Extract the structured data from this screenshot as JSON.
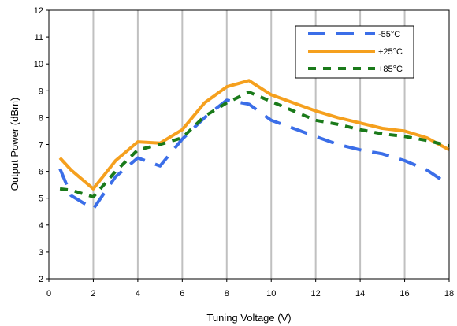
{
  "chart_data": {
    "type": "line",
    "xlabel": "Tuning Voltage (V)",
    "ylabel": "Output Power (dBm)",
    "xlim": [
      0,
      18
    ],
    "ylim": [
      2,
      12
    ],
    "xticks": [
      0,
      2,
      4,
      6,
      8,
      10,
      12,
      14,
      16,
      18
    ],
    "yticks": [
      2,
      3,
      4,
      5,
      6,
      7,
      8,
      9,
      10,
      11,
      12
    ],
    "grid": "vertical",
    "legend_position": "top-right",
    "series": [
      {
        "name": "-55°C",
        "color": "#3b6ee8",
        "style": "long-dash",
        "x": [
          0.5,
          1,
          2,
          3,
          4,
          5,
          6,
          7,
          8,
          9,
          10,
          11,
          12,
          13,
          14,
          15,
          16,
          17,
          18
        ],
        "y": [
          6.1,
          5.1,
          4.6,
          5.8,
          6.5,
          6.2,
          7.2,
          8.0,
          8.65,
          8.5,
          7.9,
          7.6,
          7.3,
          7.0,
          6.8,
          6.65,
          6.4,
          6.05,
          5.5
        ]
      },
      {
        "name": "+25°C",
        "color": "#f5a01e",
        "style": "solid",
        "x": [
          0.5,
          1,
          2,
          3,
          4,
          5,
          6,
          7,
          8,
          9,
          10,
          11,
          12,
          13,
          14,
          15,
          16,
          17,
          18
        ],
        "y": [
          6.5,
          6.05,
          5.35,
          6.4,
          7.1,
          7.05,
          7.55,
          8.55,
          9.15,
          9.38,
          8.85,
          8.55,
          8.25,
          8.0,
          7.8,
          7.6,
          7.5,
          7.25,
          6.8
        ]
      },
      {
        "name": "+85°C",
        "color": "#1a7a1a",
        "style": "dash",
        "x": [
          0.5,
          1,
          2,
          3,
          4,
          5,
          6,
          7,
          8,
          9,
          10,
          11,
          12,
          13,
          14,
          15,
          16,
          17,
          18
        ],
        "y": [
          5.35,
          5.3,
          5.05,
          6.0,
          6.8,
          7.0,
          7.25,
          8.05,
          8.55,
          8.95,
          8.6,
          8.25,
          7.9,
          7.75,
          7.55,
          7.4,
          7.3,
          7.15,
          6.95
        ]
      }
    ]
  }
}
